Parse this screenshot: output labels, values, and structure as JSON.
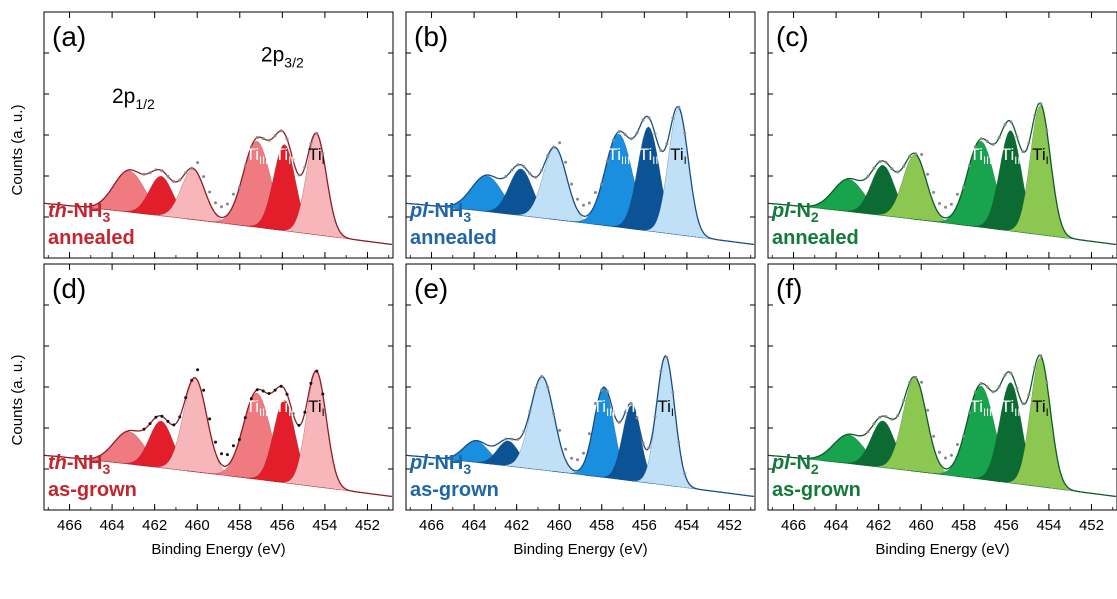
{
  "chart_data": {
    "type": "area",
    "x_axis_label": "Binding Energy (eV)",
    "y_axis_label": "Counts (a. u.)",
    "x_ticks": [
      466,
      464,
      462,
      460,
      458,
      456,
      454,
      452
    ],
    "x_range": [
      467.2,
      450.8
    ],
    "y_range": [
      0,
      1
    ],
    "y_ticks_shown": false,
    "orbital_labels": [
      {
        "text": "2p",
        "sub": "1/2",
        "x_ev": 463.0,
        "y": 0.82
      },
      {
        "text": "2p",
        "sub": "3/2",
        "x_ev": 456.0,
        "y": 1.05
      }
    ],
    "peak_labels": [
      {
        "main": "Ti",
        "sub": "III"
      },
      {
        "main": "Ti",
        "sub": "II"
      },
      {
        "main": "Ti",
        "sub": "I"
      }
    ],
    "panels": [
      {
        "letter": "(a)",
        "sample_prefix": "th",
        "sample_main": "-NH",
        "sample_sub": "3",
        "condition": "annealed",
        "label_color": "#c3262e",
        "colors": {
          "light": "#f7b6b9",
          "mid": "#ef7b80",
          "dark": "#e21e2b",
          "line": "#8c1c24",
          "measured": "#888888"
        },
        "background": {
          "high": 0.26,
          "low": 0.03
        },
        "components": [
          {
            "name": "Ti I 2p3/2",
            "center": 454.4,
            "height": 0.56,
            "fwhm": 1.1,
            "shade": "light"
          },
          {
            "name": "Ti II 2p3/2",
            "center": 455.9,
            "height": 0.48,
            "fwhm": 1.2,
            "shade": "dark"
          },
          {
            "name": "Ti III 2p3/2",
            "center": 457.2,
            "height": 0.48,
            "fwhm": 1.5,
            "shade": "mid"
          },
          {
            "name": "Ti I 2p1/2",
            "center": 460.2,
            "height": 0.28,
            "fwhm": 1.3,
            "shade": "light"
          },
          {
            "name": "Ti II 2p1/2",
            "center": 461.7,
            "height": 0.22,
            "fwhm": 1.3,
            "shade": "dark"
          },
          {
            "name": "Ti III 2p1/2",
            "center": 463.2,
            "height": 0.23,
            "fwhm": 1.7,
            "shade": "mid"
          }
        ],
        "orbital_labels_shown": true
      },
      {
        "letter": "(b)",
        "sample_prefix": "pl",
        "sample_main": "-NH",
        "sample_sub": "3",
        "condition": "annealed",
        "label_color": "#1f66a8",
        "colors": {
          "light": "#bfe0f6",
          "mid": "#1a8fe0",
          "dark": "#0b5394",
          "line": "#1a4c85",
          "measured": "#888888"
        },
        "background": {
          "high": 0.26,
          "low": 0.03
        },
        "components": [
          {
            "name": "Ti I 2p3/2",
            "center": 454.4,
            "height": 0.7,
            "fwhm": 1.1,
            "shade": "light"
          },
          {
            "name": "Ti II 2p3/2",
            "center": 455.8,
            "height": 0.58,
            "fwhm": 1.2,
            "shade": "dark"
          },
          {
            "name": "Ti III 2p3/2",
            "center": 457.2,
            "height": 0.52,
            "fwhm": 1.5,
            "shade": "mid"
          },
          {
            "name": "Ti I 2p1/2",
            "center": 460.2,
            "height": 0.4,
            "fwhm": 1.3,
            "shade": "light"
          },
          {
            "name": "Ti II 2p1/2",
            "center": 461.8,
            "height": 0.26,
            "fwhm": 1.3,
            "shade": "dark"
          },
          {
            "name": "Ti III 2p1/2",
            "center": 463.4,
            "height": 0.2,
            "fwhm": 1.7,
            "shade": "mid"
          }
        ],
        "orbital_labels_shown": false
      },
      {
        "letter": "(c)",
        "sample_prefix": "pl",
        "sample_main": "-N",
        "sample_sub": "2",
        "condition": "annealed",
        "label_color": "#137a3a",
        "colors": {
          "light": "#8cc751",
          "mid": "#18a44c",
          "dark": "#0b6b33",
          "line": "#0f5a2a",
          "measured": "#888888"
        },
        "background": {
          "high": 0.26,
          "low": 0.03
        },
        "components": [
          {
            "name": "Ti I 2p3/2",
            "center": 454.4,
            "height": 0.72,
            "fwhm": 1.1,
            "shade": "light"
          },
          {
            "name": "Ti II 2p3/2",
            "center": 455.8,
            "height": 0.56,
            "fwhm": 1.2,
            "shade": "dark"
          },
          {
            "name": "Ti III 2p3/2",
            "center": 457.2,
            "height": 0.48,
            "fwhm": 1.5,
            "shade": "mid"
          },
          {
            "name": "Ti I 2p1/2",
            "center": 460.3,
            "height": 0.36,
            "fwhm": 1.3,
            "shade": "light"
          },
          {
            "name": "Ti II 2p1/2",
            "center": 461.8,
            "height": 0.28,
            "fwhm": 1.3,
            "shade": "dark"
          },
          {
            "name": "Ti III 2p1/2",
            "center": 463.4,
            "height": 0.18,
            "fwhm": 1.7,
            "shade": "mid"
          }
        ],
        "orbital_labels_shown": false
      },
      {
        "letter": "(d)",
        "sample_prefix": "th",
        "sample_main": "-NH",
        "sample_sub": "3",
        "condition": "as-grown",
        "label_color": "#c3262e",
        "colors": {
          "light": "#f7b6b9",
          "mid": "#ef7b80",
          "dark": "#e21e2b",
          "line": "#8c1c24",
          "measured": "#111111"
        },
        "background": {
          "high": 0.26,
          "low": 0.03
        },
        "components": [
          {
            "name": "Ti I 2p3/2",
            "center": 454.4,
            "height": 0.64,
            "fwhm": 1.1,
            "shade": "light"
          },
          {
            "name": "Ti II 2p3/2",
            "center": 455.9,
            "height": 0.46,
            "fwhm": 1.2,
            "shade": "dark"
          },
          {
            "name": "Ti III 2p3/2",
            "center": 457.2,
            "height": 0.48,
            "fwhm": 1.5,
            "shade": "mid"
          },
          {
            "name": "Ti I 2p1/2",
            "center": 460.1,
            "height": 0.52,
            "fwhm": 1.3,
            "shade": "light"
          },
          {
            "name": "Ti II 2p1/2",
            "center": 461.7,
            "height": 0.26,
            "fwhm": 1.3,
            "shade": "dark"
          },
          {
            "name": "Ti III 2p1/2",
            "center": 463.2,
            "height": 0.18,
            "fwhm": 1.7,
            "shade": "mid"
          }
        ],
        "orbital_labels_shown": false
      },
      {
        "letter": "(e)",
        "sample_prefix": "pl",
        "sample_main": "-NH",
        "sample_sub": "3",
        "condition": "as-grown",
        "label_color": "#1f66a8",
        "colors": {
          "light": "#bfe0f6",
          "mid": "#1a8fe0",
          "dark": "#0b5394",
          "line": "#1a4c85",
          "measured": "#888888"
        },
        "background": {
          "high": 0.26,
          "low": 0.03
        },
        "components": [
          {
            "name": "Ti I 2p3/2",
            "center": 455.0,
            "height": 0.72,
            "fwhm": 1.0,
            "shade": "light"
          },
          {
            "name": "Ti II 2p3/2",
            "center": 456.6,
            "height": 0.42,
            "fwhm": 1.0,
            "shade": "dark"
          },
          {
            "name": "Ti III 2p3/2",
            "center": 457.9,
            "height": 0.5,
            "fwhm": 1.1,
            "shade": "mid"
          },
          {
            "name": "Ti I 2p1/2",
            "center": 460.8,
            "height": 0.52,
            "fwhm": 1.3,
            "shade": "light"
          },
          {
            "name": "Ti II 2p1/2",
            "center": 462.4,
            "height": 0.14,
            "fwhm": 1.2,
            "shade": "dark"
          },
          {
            "name": "Ti III 2p1/2",
            "center": 463.9,
            "height": 0.12,
            "fwhm": 1.4,
            "shade": "mid"
          }
        ],
        "orbital_labels_shown": false
      },
      {
        "letter": "(f)",
        "sample_prefix": "pl",
        "sample_main": "-N",
        "sample_sub": "2",
        "condition": "as-grown",
        "label_color": "#137a3a",
        "colors": {
          "light": "#8cc751",
          "mid": "#18a44c",
          "dark": "#0b6b33",
          "line": "#0f5a2a",
          "measured": "#888888"
        },
        "background": {
          "high": 0.26,
          "low": 0.03
        },
        "components": [
          {
            "name": "Ti I 2p3/2",
            "center": 454.4,
            "height": 0.72,
            "fwhm": 1.1,
            "shade": "light"
          },
          {
            "name": "Ti II 2p3/2",
            "center": 455.8,
            "height": 0.56,
            "fwhm": 1.2,
            "shade": "dark"
          },
          {
            "name": "Ti III 2p3/2",
            "center": 457.2,
            "height": 0.52,
            "fwhm": 1.5,
            "shade": "mid"
          },
          {
            "name": "Ti I 2p1/2",
            "center": 460.3,
            "height": 0.52,
            "fwhm": 1.3,
            "shade": "light"
          },
          {
            "name": "Ti II 2p1/2",
            "center": 461.8,
            "height": 0.26,
            "fwhm": 1.3,
            "shade": "dark"
          },
          {
            "name": "Ti III 2p1/2",
            "center": 463.4,
            "height": 0.16,
            "fwhm": 1.7,
            "shade": "mid"
          }
        ],
        "orbital_labels_shown": false
      }
    ]
  }
}
